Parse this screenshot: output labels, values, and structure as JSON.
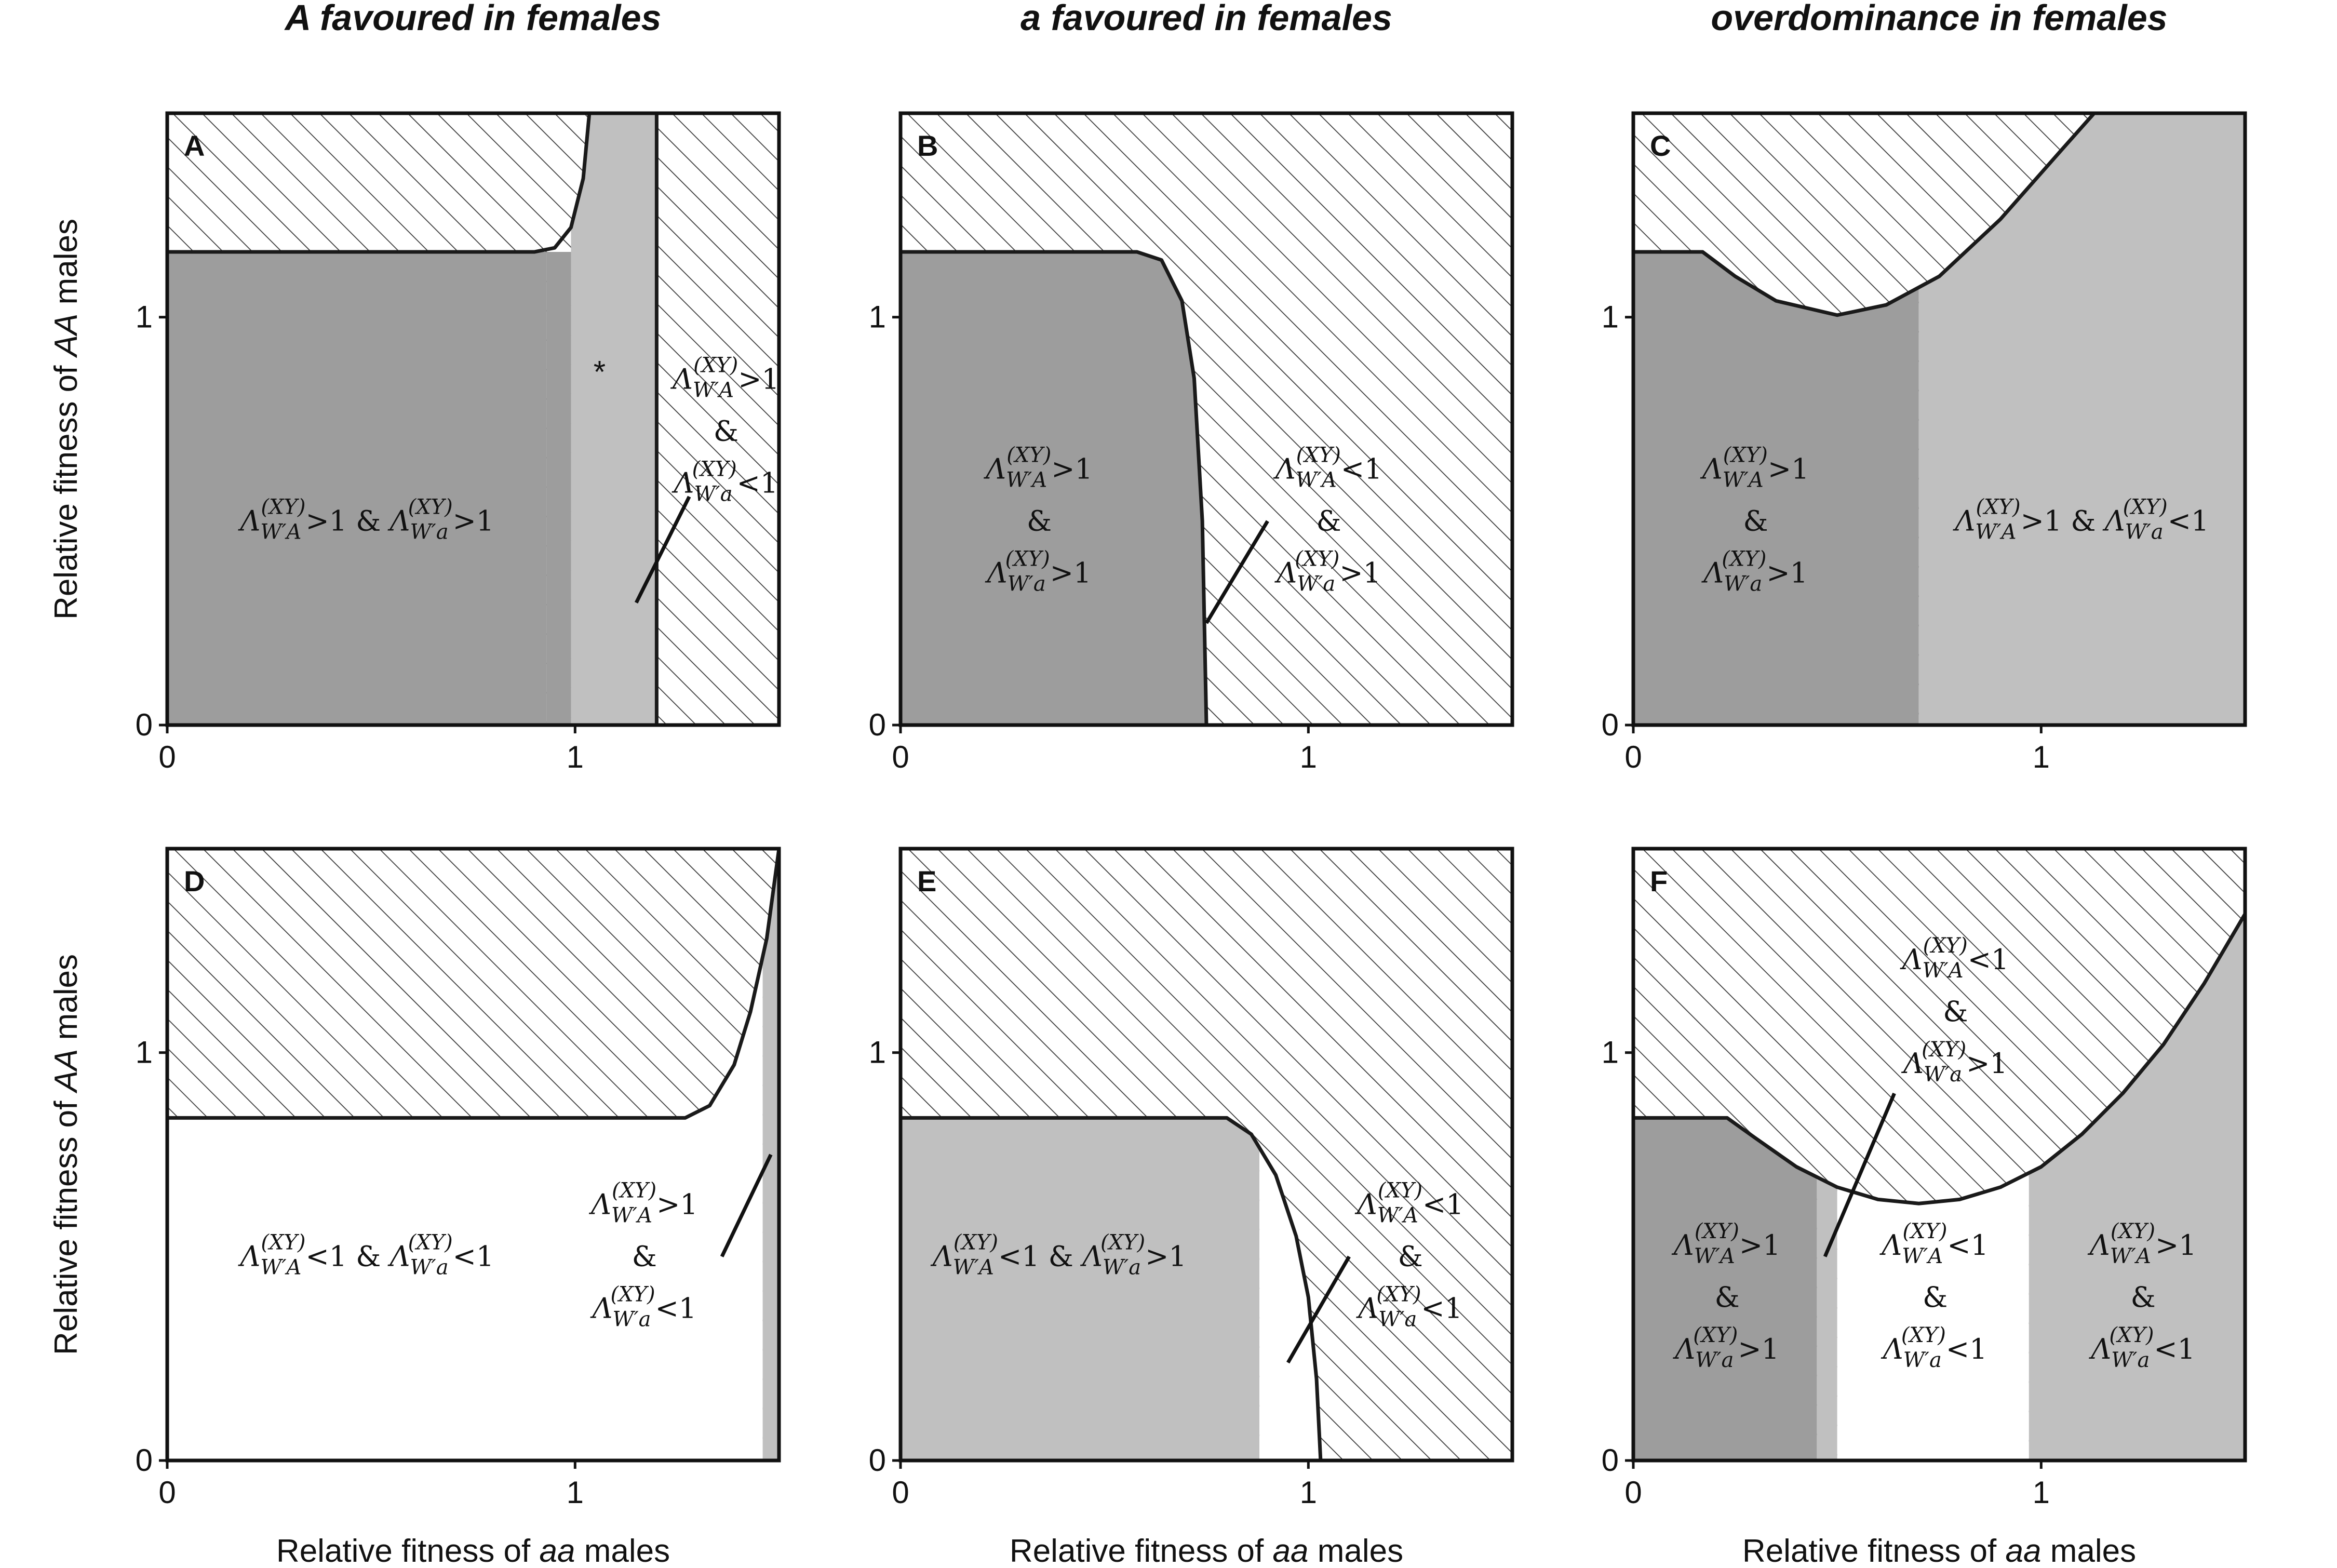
{
  "chart_data": {
    "type": "region-map",
    "x_label": {
      "pre": "Relative fitness of ",
      "ital": "aa",
      "post": " males"
    },
    "y_label": {
      "pre": "Relative fitness of ",
      "ital": "AA",
      "post": " males"
    },
    "xlim": [
      0,
      1.5
    ],
    "ylim": [
      0,
      1.5
    ],
    "x_ticks": [
      "0",
      "1"
    ],
    "y_ticks": [
      "0",
      "1"
    ],
    "column_titles": [
      {
        "ital": "A",
        "rest": " favoured in females"
      },
      {
        "ital": "a",
        "rest": " favoured in females"
      },
      {
        "ital": "",
        "rest": "overdominance in females"
      }
    ],
    "colors": {
      "dark_gray": "#9d9d9d",
      "light_gray": "#c0c0c0",
      "white": "#ffffff",
      "hatch_line": "#3a3a3a",
      "frame": "#111111"
    },
    "panels": [
      {
        "letter": "A",
        "annotation": "*",
        "rects": [
          {
            "x0": 0.0,
            "x1": 0.93,
            "y0": 0.0,
            "y1": 1.16,
            "fill": "dark_gray"
          },
          {
            "x0": 0.93,
            "x1": 0.99,
            "y0": 0.0,
            "y1": 1.16,
            "fill": "dark_gray"
          },
          {
            "x0": 0.99,
            "x1": 1.2,
            "y0": 0.0,
            "y1": 1.5,
            "fill": "light_gray"
          }
        ],
        "upper_boundary": [
          [
            0,
            1.16
          ],
          [
            0.9,
            1.16
          ],
          [
            0.95,
            1.17
          ],
          [
            0.99,
            1.22
          ],
          [
            1.02,
            1.34
          ],
          [
            1.035,
            1.5
          ]
        ],
        "vertical_boundary_x": 1.2,
        "labels": [
          {
            "x": 0.49,
            "y": 0.5,
            "lines": [
              {
                "terms": [
                  {
                    "allele": "A",
                    "rel": ">1"
                  },
                  {
                    "allele": "a",
                    "rel": ">1"
                  }
                ]
              }
            ]
          },
          {
            "x": 1.37,
            "y": 0.72,
            "lines": [
              {
                "terms": [
                  {
                    "allele": "A",
                    "rel": ">1"
                  }
                ]
              },
              {
                "amp": true
              },
              {
                "terms": [
                  {
                    "allele": "a",
                    "rel": "<1"
                  }
                ]
              }
            ]
          }
        ],
        "pointers": [
          [
            [
              1.15,
              0.3
            ],
            [
              1.28,
              0.56
            ]
          ]
        ]
      },
      {
        "letter": "B",
        "rects": [
          {
            "x0": 0.0,
            "x1": 0.75,
            "y0": 0.0,
            "y1": 1.16,
            "fill": "dark_gray"
          }
        ],
        "upper_boundary": [
          [
            0,
            1.16
          ],
          [
            0.58,
            1.16
          ],
          [
            0.64,
            1.14
          ],
          [
            0.69,
            1.04
          ],
          [
            0.72,
            0.85
          ],
          [
            0.74,
            0.5
          ],
          [
            0.75,
            0.0
          ]
        ],
        "labels": [
          {
            "x": 0.34,
            "y": 0.5,
            "lines": [
              {
                "terms": [
                  {
                    "allele": "A",
                    "rel": ">1"
                  }
                ]
              },
              {
                "amp": true
              },
              {
                "terms": [
                  {
                    "allele": "a",
                    "rel": ">1"
                  }
                ]
              }
            ]
          },
          {
            "x": 1.05,
            "y": 0.5,
            "lines": [
              {
                "terms": [
                  {
                    "allele": "A",
                    "rel": "<1"
                  }
                ]
              },
              {
                "amp": true
              },
              {
                "terms": [
                  {
                    "allele": "a",
                    "rel": ">1"
                  }
                ]
              }
            ]
          }
        ],
        "pointers": [
          [
            [
              0.75,
              0.25
            ],
            [
              0.9,
              0.5
            ]
          ]
        ]
      },
      {
        "letter": "C",
        "rects": [
          {
            "x0": 0.0,
            "x1": 0.7,
            "y0": 0.0,
            "y1": 1.5,
            "fill": "dark_gray"
          },
          {
            "x0": 0.7,
            "x1": 1.5,
            "y0": 0.0,
            "y1": 1.5,
            "fill": "light_gray"
          }
        ],
        "upper_boundary": [
          [
            0,
            1.16
          ],
          [
            0.17,
            1.16
          ],
          [
            0.25,
            1.1
          ],
          [
            0.35,
            1.04
          ],
          [
            0.5,
            1.005
          ],
          [
            0.62,
            1.03
          ],
          [
            0.75,
            1.1
          ],
          [
            0.9,
            1.24
          ],
          [
            1.05,
            1.41
          ],
          [
            1.13,
            1.5
          ]
        ],
        "labels": [
          {
            "x": 0.3,
            "y": 0.5,
            "lines": [
              {
                "terms": [
                  {
                    "allele": "A",
                    "rel": ">1"
                  }
                ]
              },
              {
                "amp": true
              },
              {
                "terms": [
                  {
                    "allele": "a",
                    "rel": ">1"
                  }
                ]
              }
            ]
          },
          {
            "x": 1.1,
            "y": 0.5,
            "lines": [
              {
                "terms": [
                  {
                    "allele": "A",
                    "rel": ">1"
                  },
                  {
                    "allele": "a",
                    "rel": "<1"
                  }
                ]
              }
            ]
          }
        ],
        "pointers": []
      },
      {
        "letter": "D",
        "rects": [
          {
            "x0": 0.0,
            "x1": 1.46,
            "y0": 0.0,
            "y1": 1.5,
            "fill": "white"
          },
          {
            "x0": 1.46,
            "x1": 1.5,
            "y0": 0.0,
            "y1": 1.5,
            "fill": "light_gray"
          }
        ],
        "upper_boundary": [
          [
            0,
            0.84
          ],
          [
            1.27,
            0.84
          ],
          [
            1.33,
            0.87
          ],
          [
            1.39,
            0.97
          ],
          [
            1.43,
            1.1
          ],
          [
            1.47,
            1.28
          ],
          [
            1.5,
            1.5
          ]
        ],
        "labels": [
          {
            "x": 0.49,
            "y": 0.5,
            "lines": [
              {
                "terms": [
                  {
                    "allele": "A",
                    "rel": "<1"
                  },
                  {
                    "allele": "a",
                    "rel": "<1"
                  }
                ]
              }
            ]
          },
          {
            "x": 1.17,
            "y": 0.5,
            "lines": [
              {
                "terms": [
                  {
                    "allele": "A",
                    "rel": ">1"
                  }
                ]
              },
              {
                "amp": true
              },
              {
                "terms": [
                  {
                    "allele": "a",
                    "rel": "<1"
                  }
                ]
              }
            ]
          }
        ],
        "pointers": [
          [
            [
              1.36,
              0.5
            ],
            [
              1.48,
              0.75
            ]
          ]
        ]
      },
      {
        "letter": "E",
        "rects": [
          {
            "x0": 0.0,
            "x1": 0.88,
            "y0": 0.0,
            "y1": 1.5,
            "fill": "light_gray"
          },
          {
            "x0": 0.88,
            "x1": 1.03,
            "y0": 0.0,
            "y1": 1.5,
            "fill": "white"
          }
        ],
        "upper_boundary": [
          [
            0,
            0.84
          ],
          [
            0.8,
            0.84
          ],
          [
            0.86,
            0.8
          ],
          [
            0.92,
            0.7
          ],
          [
            0.97,
            0.55
          ],
          [
            1.0,
            0.4
          ],
          [
            1.02,
            0.2
          ],
          [
            1.03,
            0.0
          ]
        ],
        "labels": [
          {
            "x": 0.39,
            "y": 0.5,
            "lines": [
              {
                "terms": [
                  {
                    "allele": "A",
                    "rel": "<1"
                  },
                  {
                    "allele": "a",
                    "rel": ">1"
                  }
                ]
              }
            ]
          },
          {
            "x": 1.25,
            "y": 0.5,
            "lines": [
              {
                "terms": [
                  {
                    "allele": "A",
                    "rel": "<1"
                  }
                ]
              },
              {
                "amp": true
              },
              {
                "terms": [
                  {
                    "allele": "a",
                    "rel": "<1"
                  }
                ]
              }
            ]
          }
        ],
        "pointers": [
          [
            [
              0.95,
              0.24
            ],
            [
              1.1,
              0.5
            ]
          ]
        ]
      },
      {
        "letter": "F",
        "rects": [
          {
            "x0": 0.0,
            "x1": 0.45,
            "y0": 0.0,
            "y1": 1.5,
            "fill": "dark_gray"
          },
          {
            "x0": 0.45,
            "x1": 0.5,
            "y0": 0.0,
            "y1": 1.5,
            "fill": "light_gray"
          },
          {
            "x0": 0.5,
            "x1": 0.97,
            "y0": 0.0,
            "y1": 1.5,
            "fill": "white"
          },
          {
            "x0": 0.97,
            "x1": 1.5,
            "y0": 0.0,
            "y1": 1.5,
            "fill": "light_gray"
          }
        ],
        "upper_boundary": [
          [
            0,
            0.84
          ],
          [
            0.23,
            0.84
          ],
          [
            0.3,
            0.79
          ],
          [
            0.4,
            0.72
          ],
          [
            0.5,
            0.67
          ],
          [
            0.6,
            0.64
          ],
          [
            0.7,
            0.63
          ],
          [
            0.8,
            0.64
          ],
          [
            0.9,
            0.67
          ],
          [
            1.0,
            0.72
          ],
          [
            1.1,
            0.8
          ],
          [
            1.2,
            0.9
          ],
          [
            1.3,
            1.02
          ],
          [
            1.4,
            1.17
          ],
          [
            1.5,
            1.34
          ]
        ],
        "labels": [
          {
            "x": 0.23,
            "y": 0.4,
            "lines": [
              {
                "terms": [
                  {
                    "allele": "A",
                    "rel": ">1"
                  }
                ]
              },
              {
                "amp": true
              },
              {
                "terms": [
                  {
                    "allele": "a",
                    "rel": ">1"
                  }
                ]
              }
            ]
          },
          {
            "x": 0.74,
            "y": 0.4,
            "lines": [
              {
                "terms": [
                  {
                    "allele": "A",
                    "rel": "<1"
                  }
                ]
              },
              {
                "amp": true
              },
              {
                "terms": [
                  {
                    "allele": "a",
                    "rel": "<1"
                  }
                ]
              }
            ]
          },
          {
            "x": 1.25,
            "y": 0.4,
            "lines": [
              {
                "terms": [
                  {
                    "allele": "A",
                    "rel": ">1"
                  }
                ]
              },
              {
                "amp": true
              },
              {
                "terms": [
                  {
                    "allele": "a",
                    "rel": "<1"
                  }
                ]
              }
            ]
          },
          {
            "x": 0.79,
            "y": 1.1,
            "lines": [
              {
                "terms": [
                  {
                    "allele": "A",
                    "rel": "<1"
                  }
                ]
              },
              {
                "amp": true
              },
              {
                "terms": [
                  {
                    "allele": "a",
                    "rel": ">1"
                  }
                ]
              }
            ]
          }
        ],
        "pointers": [
          [
            [
              0.47,
              0.5
            ],
            [
              0.64,
              0.9
            ]
          ]
        ]
      }
    ]
  }
}
